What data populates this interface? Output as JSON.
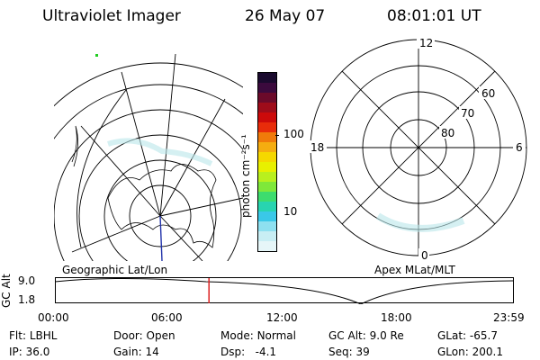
{
  "header": {
    "instrument": "Ultraviolet Imager",
    "date": "26 May 07",
    "time": "08:01:01 UT"
  },
  "colorbar": {
    "unit_label": "photon cm⁻²s⁻¹",
    "tick_labels": [
      "100",
      "10"
    ],
    "colors": [
      "#1a0a2e",
      "#3b0a3d",
      "#6b0a2a",
      "#9e0c1a",
      "#cc0a0a",
      "#e82c0a",
      "#f07a0a",
      "#f5ad10",
      "#f5d800",
      "#e8f000",
      "#b9f01e",
      "#7fe83a",
      "#3ddc6e",
      "#28d4b0",
      "#3ac8e8",
      "#8ee0f0",
      "#c8eef4",
      "#e6f6f8"
    ]
  },
  "left_panel": {
    "label": "Geographic Lat/Lon"
  },
  "right_panel": {
    "label": "Apex MLat/MLT",
    "mlt_labels": {
      "top": "12",
      "left": "18",
      "right": "6",
      "bottom": "0"
    },
    "lat_labels": [
      "60",
      "70",
      "80"
    ]
  },
  "altitude_strip": {
    "axis_title": "GC Alt",
    "y_labels": [
      "9.0",
      "1.8"
    ],
    "x_labels": [
      "00:00",
      "06:00",
      "12:00",
      "18:00",
      "23:59"
    ],
    "current_time_fraction": 0.3354,
    "marker_color": "#dd2222"
  },
  "info": {
    "flt_label": "Flt:",
    "flt_value": "LBHL",
    "ip_label": "IP:",
    "ip_value": "36.0",
    "door_label": "Door:",
    "door_value": "Open",
    "gain_label": "Gain:",
    "gain_value": "14",
    "mode_label": "Mode:",
    "mode_value": "Normal",
    "dsp_label": "Dsp:",
    "dsp_value": "-4.1",
    "gcalt_label": "GC Alt:",
    "gcalt_value": "9.0 Re",
    "seq_label": "Seq:",
    "seq_value": "39",
    "glat_label": "GLat:",
    "glat_value": "-65.7",
    "glon_label": "GLon:",
    "glon_value": "200.1"
  }
}
